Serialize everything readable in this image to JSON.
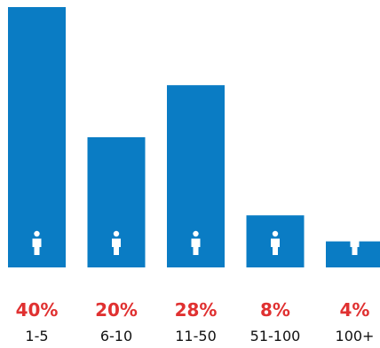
{
  "chart_data": {
    "type": "bar",
    "categories": [
      "1-5",
      "6-10",
      "11-50",
      "51-100",
      "100+"
    ],
    "values": [
      40,
      20,
      28,
      8,
      4
    ],
    "value_labels": [
      "40%",
      "20%",
      "28%",
      "8%",
      "4%"
    ],
    "ylim": [
      0,
      40
    ],
    "grid": false,
    "legend": "none",
    "icon": "person-icon"
  },
  "colors": {
    "bar": "#0a7cc4",
    "value_label": "#e03131",
    "icon": "#ffffff"
  }
}
